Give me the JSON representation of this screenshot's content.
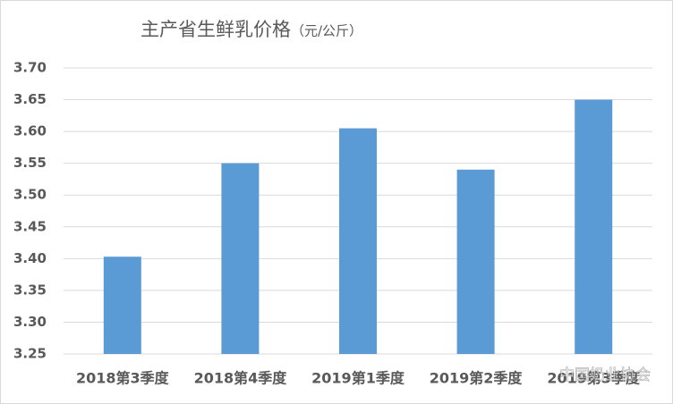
{
  "chart_data": {
    "type": "bar",
    "title": "主产省生鲜乳价格",
    "unit": "（元/公斤）",
    "categories": [
      "2018第3季度",
      "2018第4季度",
      "2019第1季度",
      "2019第2季度",
      "2019第3季度"
    ],
    "values": [
      3.403,
      3.55,
      3.605,
      3.54,
      3.65
    ],
    "color": "#5b9bd5",
    "ylim": [
      3.25,
      3.7
    ],
    "yticks": [
      {
        "value": 3.25,
        "label": "3.25"
      },
      {
        "value": 3.3,
        "label": "3.30"
      },
      {
        "value": 3.35,
        "label": "3.35"
      },
      {
        "value": 3.4,
        "label": "3.40"
      },
      {
        "value": 3.45,
        "label": "3.45"
      },
      {
        "value": 3.5,
        "label": "3.50"
      },
      {
        "value": 3.55,
        "label": "3.55"
      },
      {
        "value": 3.6,
        "label": "3.60"
      },
      {
        "value": 3.65,
        "label": "3.65"
      },
      {
        "value": 3.7,
        "label": "3.70"
      }
    ],
    "grid": true,
    "watermark": "中国奶业协会"
  }
}
